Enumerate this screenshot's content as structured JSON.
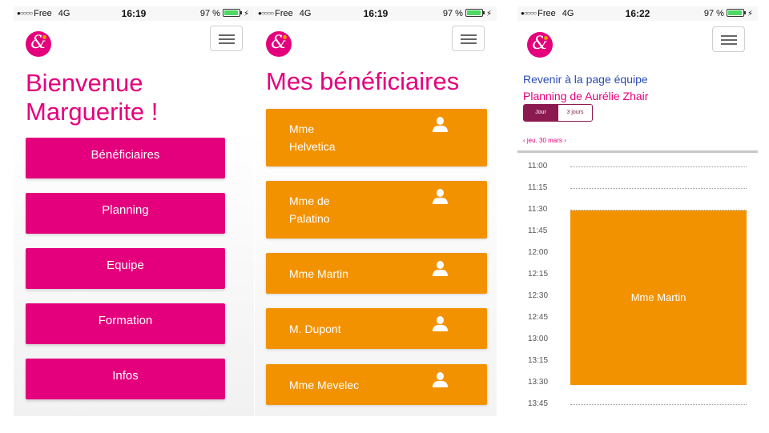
{
  "status_bar": {
    "screen1": {
      "carrier": "Free",
      "network": "4G",
      "time": "16:19",
      "battery": "97 %",
      "battery_level": 0.97
    },
    "screen2": {
      "carrier": "Free",
      "network": "4G",
      "time": "16:19",
      "battery": "97 %",
      "battery_level": 0.97
    },
    "screen3": {
      "carrier": "Free",
      "network": "4G",
      "time": "16:22",
      "battery": "97 %",
      "battery_level": 0.97
    },
    "signal_dots": "●○○○○"
  },
  "logo": {
    "glyph": "&"
  },
  "colors": {
    "brand_pink": "#e4007c",
    "accent_orange": "#f39200",
    "dark_magenta": "#8b1a50",
    "link_blue": "#2b4bb3"
  },
  "home": {
    "welcome_line1": "Bienvenue",
    "welcome_line2": "Marguerite !",
    "nav": [
      "Bénéficiaires",
      "Planning",
      "Equipe",
      "Formation",
      "Infos"
    ]
  },
  "beneficiaries": {
    "title": "Mes bénéficiaires",
    "items": [
      {
        "line1": "Mme",
        "line2": "Helvetica"
      },
      {
        "line1": "Mme de",
        "line2": "Palatino"
      },
      {
        "line1": "Mme  Martin",
        "line2": ""
      },
      {
        "line1": "M. Dupont",
        "line2": ""
      },
      {
        "line1": "Mme  Mevelec",
        "line2": ""
      }
    ],
    "icon": "person-icon"
  },
  "planning": {
    "back_link": "Revenir à la page équipe",
    "title": "Planning de Aurélie Zhair",
    "view_day": "Jour",
    "view_3days": "3 jours",
    "date_nav": "‹ jeu. 30 mars ›",
    "times": [
      "11:00",
      "11:15",
      "11:30",
      "11:45",
      "12:00",
      "12:15",
      "12:30",
      "12:45",
      "13:00",
      "13:15",
      "13:30",
      "13:45"
    ],
    "event": {
      "label": "Mme Martin",
      "start": "11:30",
      "end": "13:30"
    }
  }
}
